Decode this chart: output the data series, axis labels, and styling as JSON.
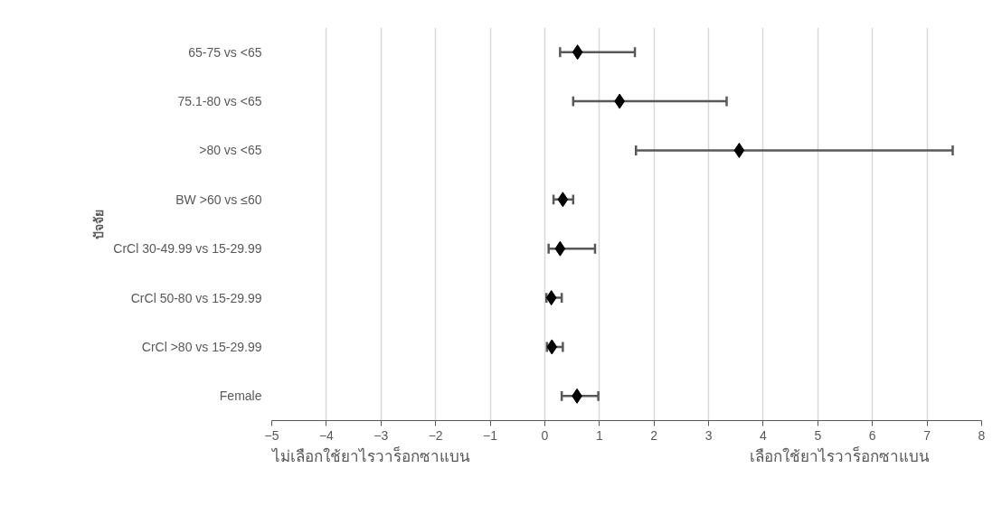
{
  "chart_data": {
    "type": "scatter",
    "orientation": "horizontal",
    "ylabel": "ปัจจัย",
    "categories": [
      "65-75 vs <65",
      "75.1-80 vs <65",
      ">80 vs <65",
      "BW >60 vs ≤60",
      "CrCl 30-49.99 vs 15-29.99",
      "CrCl 50-80 vs 15-29.99",
      "CrCl >80 vs 15-29.99",
      "Female"
    ],
    "series": [
      {
        "color": "#000000",
        "values": [
          0.6,
          1.37,
          3.56,
          0.33,
          0.28,
          0.12,
          0.13,
          0.59
        ],
        "errors": [
          [
            0.28,
            1.65
          ],
          [
            0.52,
            3.33
          ],
          [
            1.67,
            7.47
          ],
          [
            0.16,
            0.52
          ],
          [
            0.07,
            0.92
          ],
          [
            0.03,
            0.31
          ],
          [
            0.04,
            0.33
          ],
          [
            0.31,
            0.98
          ]
        ]
      }
    ],
    "xlim": [
      -5,
      8
    ],
    "xticks": [
      -5,
      -4,
      -3,
      -2,
      -1,
      0,
      1,
      2,
      3,
      4,
      5,
      6,
      7,
      8
    ],
    "grid": "x",
    "marker": "diamond",
    "annotations": [
      "ไม่เลือกใช้ยาไรวาร็อกซาแบน",
      "เลือกใช้ยาไรวาร็อกซาแบน"
    ]
  }
}
